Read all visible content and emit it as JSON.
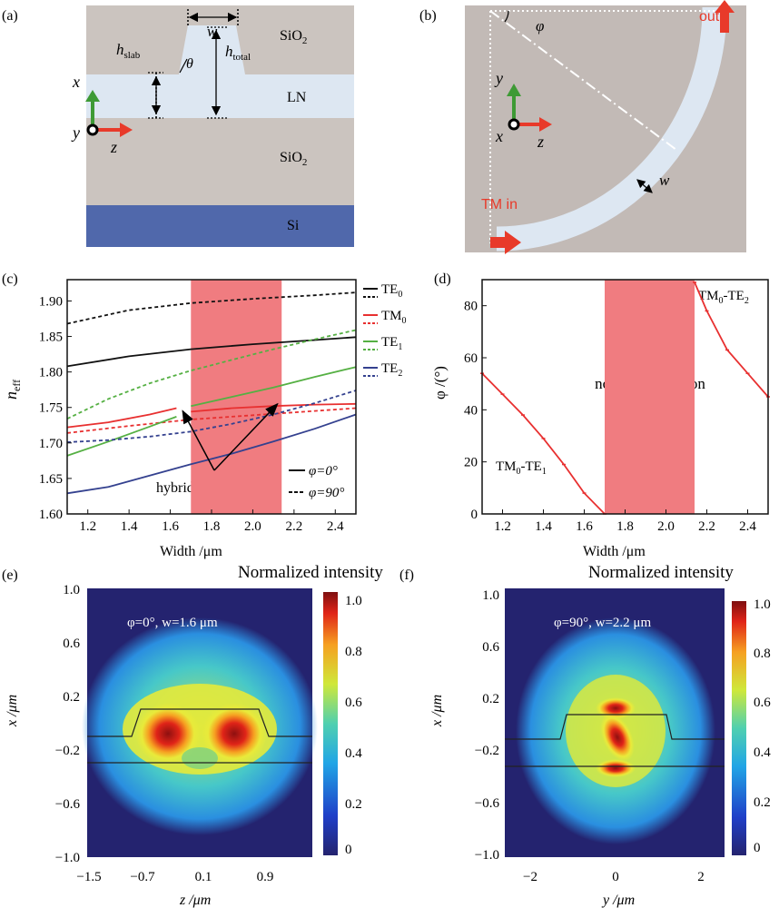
{
  "panels": {
    "a": {
      "label": "(a)",
      "w": "w",
      "theta": "θ",
      "h_slab": "h",
      "h_slab_sub": "slab",
      "h_total": "h",
      "h_total_sub": "total",
      "sio2_top": "SiO",
      "sio2_top_sub": "2",
      "ln": "LN",
      "sio2_bot": "SiO",
      "sio2_bot_sub": "2",
      "si": "Si",
      "ax_x": "x",
      "ax_y": "y",
      "ax_z": "z"
    },
    "b": {
      "label": "(b)",
      "phi": "φ",
      "out": "out",
      "tm_in": "TM in",
      "w": "w",
      "ax_y": "y",
      "ax_x": "x",
      "ax_z": "z"
    },
    "c": {
      "label": "(c)",
      "ylabel": "n",
      "ylabel_sub": "eff",
      "xlabel": "Width /μm",
      "hybrid": "hybrid point",
      "legend_modes": [
        {
          "name": "TE",
          "sub": "0"
        },
        {
          "name": "TM",
          "sub": "0"
        },
        {
          "name": "TE",
          "sub": "1"
        },
        {
          "name": "TE",
          "sub": "2"
        }
      ],
      "legend_phi0": "φ=0°",
      "legend_phi90": "φ=90°"
    },
    "d": {
      "label": "(d)",
      "ylabel": "φ /(°)",
      "xlabel": "Width /μm",
      "region_line1": "non-hybridization",
      "region_line2": "region",
      "tm_te1": {
        "a": "TM",
        "a_sub": "0",
        "b": "-TE",
        "b_sub": "1"
      },
      "tm_te2": {
        "a": "TM",
        "a_sub": "0",
        "b": "-TE",
        "b_sub": "2"
      }
    },
    "e": {
      "label": "(e)",
      "title": "Normalized intensity",
      "annot": "φ=0°, w=1.6 μm",
      "xlabel": "z /μm",
      "ylabel": "x /μm",
      "xticks": [
        "−1.5",
        "−0.7",
        "0.1",
        "0.9"
      ],
      "yticks": [
        "1.0",
        "0.6",
        "0.2",
        "−0.2",
        "−0.6",
        "−1.0"
      ],
      "cbar_ticks": [
        "1.0",
        "0.8",
        "0.6",
        "0.4",
        "0.2",
        "0"
      ]
    },
    "f": {
      "label": "(f)",
      "title": "Normalized intensity",
      "annot": "φ=90°, w=2.2 μm",
      "xlabel": "y /μm",
      "ylabel": "x /μm",
      "xticks": [
        "−2",
        "0",
        "2"
      ],
      "yticks": [
        "1.0",
        "0.6",
        "0.2",
        "−0.2",
        "−0.6",
        "−1.0"
      ],
      "cbar_ticks": [
        "1.0",
        "0.8",
        "0.6",
        "0.4",
        "0.2",
        "0"
      ]
    }
  },
  "colors": {
    "sio2": "#cbc4bf",
    "ln": "#dde7f2",
    "si": "#5068ab",
    "highlight": "#f07c80",
    "te0": "#111111",
    "tm0": "#e83030",
    "te1": "#55b043",
    "te2": "#34418f"
  },
  "chart_data": [
    {
      "type": "line",
      "panel": "c",
      "xlim": [
        1.1,
        2.5
      ],
      "ylim": [
        1.6,
        1.93
      ],
      "xticks": [
        1.2,
        1.4,
        1.6,
        1.8,
        2.0,
        2.2,
        2.4
      ],
      "xtick_labels": [
        "1.2",
        "1.4",
        "1.6",
        "1.8",
        "2.0",
        "2.2",
        "2.4"
      ],
      "yticks": [
        1.6,
        1.65,
        1.7,
        1.75,
        1.8,
        1.85,
        1.9
      ],
      "ytick_labels": [
        "1.60",
        "1.65",
        "1.70",
        "1.75",
        "1.80",
        "1.85",
        "1.90"
      ],
      "highlight_band": [
        1.7,
        2.14
      ],
      "series": [
        {
          "name": "TE0 φ=0°",
          "style": "solid",
          "color": "te0",
          "x": [
            1.1,
            1.4,
            1.7,
            2.0,
            2.3,
            2.5
          ],
          "y": [
            1.808,
            1.822,
            1.832,
            1.839,
            1.845,
            1.849
          ]
        },
        {
          "name": "TE0 φ=90°",
          "style": "dashed",
          "color": "te0",
          "x": [
            1.1,
            1.4,
            1.7,
            2.0,
            2.3,
            2.5
          ],
          "y": [
            1.868,
            1.887,
            1.897,
            1.903,
            1.908,
            1.912
          ]
        },
        {
          "name": "TM0 φ=0° (a)",
          "style": "solid",
          "color": "tm0",
          "x": [
            1.1,
            1.3,
            1.5,
            1.63
          ],
          "y": [
            1.722,
            1.729,
            1.74,
            1.749
          ]
        },
        {
          "name": "TM0 φ=0° (b)",
          "style": "solid",
          "color": "tm0",
          "x": [
            1.7,
            1.9,
            2.1,
            2.3,
            2.5
          ],
          "y": [
            1.744,
            1.749,
            1.752,
            1.754,
            1.755
          ]
        },
        {
          "name": "TM0 φ=90°",
          "style": "dashed",
          "color": "tm0",
          "x": [
            1.1,
            1.4,
            1.7,
            2.0,
            2.3,
            2.5
          ],
          "y": [
            1.714,
            1.724,
            1.733,
            1.739,
            1.745,
            1.749
          ]
        },
        {
          "name": "TE1 φ=0° (a)",
          "style": "solid",
          "color": "te1",
          "x": [
            1.1,
            1.3,
            1.5,
            1.63
          ],
          "y": [
            1.682,
            1.702,
            1.723,
            1.737
          ]
        },
        {
          "name": "TE1 φ=0° (b)",
          "style": "solid",
          "color": "te1",
          "x": [
            1.7,
            1.9,
            2.1,
            2.3,
            2.5
          ],
          "y": [
            1.752,
            1.765,
            1.778,
            1.793,
            1.807
          ]
        },
        {
          "name": "TE1 φ=90°",
          "style": "dashed",
          "color": "te1",
          "x": [
            1.1,
            1.3,
            1.5,
            1.7,
            1.9,
            2.1,
            2.3,
            2.5
          ],
          "y": [
            1.734,
            1.762,
            1.784,
            1.802,
            1.817,
            1.832,
            1.846,
            1.859
          ]
        },
        {
          "name": "TE2 φ=0°",
          "style": "solid",
          "color": "te2",
          "x": [
            1.1,
            1.3,
            1.5,
            1.7,
            1.9,
            2.1,
            2.3,
            2.5
          ],
          "y": [
            1.629,
            1.638,
            1.654,
            1.67,
            1.685,
            1.702,
            1.72,
            1.74
          ]
        },
        {
          "name": "TE2 φ=90°",
          "style": "dashed",
          "color": "te2",
          "x": [
            1.1,
            1.3,
            1.5,
            1.7,
            1.9,
            2.1,
            2.3,
            2.5
          ],
          "y": [
            1.701,
            1.704,
            1.709,
            1.716,
            1.727,
            1.74,
            1.756,
            1.774
          ]
        }
      ]
    },
    {
      "type": "line",
      "panel": "d",
      "xlim": [
        1.1,
        2.5
      ],
      "ylim": [
        0,
        90
      ],
      "xticks": [
        1.2,
        1.4,
        1.6,
        1.8,
        2.0,
        2.2,
        2.4
      ],
      "xtick_labels": [
        "1.2",
        "1.4",
        "1.6",
        "1.8",
        "2.0",
        "2.2",
        "2.4"
      ],
      "yticks": [
        0,
        20,
        40,
        60,
        80
      ],
      "ytick_labels": [
        "0",
        "20",
        "40",
        "60",
        "80"
      ],
      "highlight_band": [
        1.7,
        2.14
      ],
      "series": [
        {
          "name": "TM0-TE1",
          "color": "tm0",
          "x": [
            1.1,
            1.2,
            1.3,
            1.4,
            1.5,
            1.6,
            1.7
          ],
          "y": [
            54,
            46,
            38,
            29,
            19,
            8,
            0
          ]
        },
        {
          "name": "TM0-TE2",
          "color": "tm0",
          "x": [
            2.14,
            2.2,
            2.3,
            2.4,
            2.5
          ],
          "y": [
            89,
            78,
            63,
            54,
            45
          ]
        }
      ]
    }
  ]
}
